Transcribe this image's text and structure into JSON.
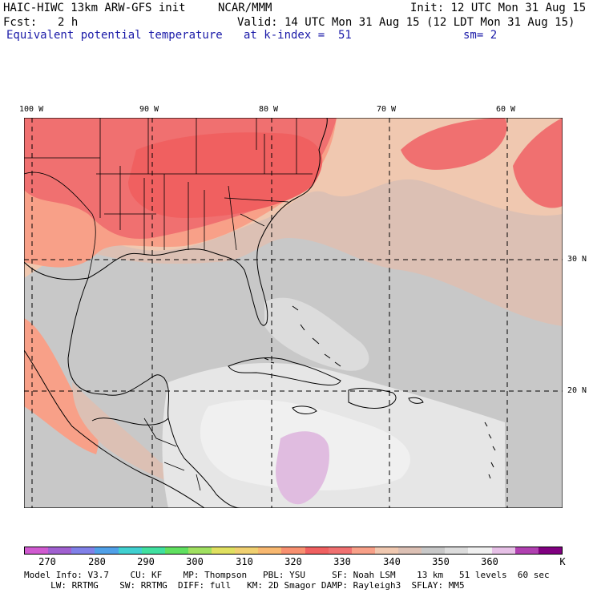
{
  "header": {
    "model_line": "HAIC-HIWC 13km ARW-GFS init",
    "org": "NCAR/MMM",
    "init": "Init: 12 UTC Mon 31 Aug 15",
    "fcst_label": "Fcst:",
    "fcst_value": "2 h",
    "valid": "Valid: 14 UTC Mon 31 Aug 15 (12 LDT Mon 31 Aug 15)",
    "field": "Equivalent potential temperature",
    "level": "at k-index =  51",
    "smooth": "sm= 2"
  },
  "map": {
    "lon_labels": [
      "100 W",
      "90 W",
      "80 W",
      "70 W",
      "60 W"
    ],
    "lat_labels": [
      "30 N",
      "20 N"
    ]
  },
  "colorbar": {
    "colors": [
      "#d05ad0",
      "#a060d0",
      "#8080e8",
      "#50a0e8",
      "#40d0d0",
      "#40e0a0",
      "#60e060",
      "#a0e060",
      "#e0e060",
      "#f0d070",
      "#f8b870",
      "#f89070",
      "#f06060",
      "#f07070",
      "#f8a088",
      "#f0c8b0",
      "#dcc0b4",
      "#c8c8c8",
      "#dcdcdc",
      "#f0f0f0",
      "#e6c0e6",
      "#b040b0",
      "#800080"
    ],
    "labels": [
      "270",
      "280",
      "290",
      "300",
      "310",
      "320",
      "330",
      "340",
      "350",
      "360",
      "K"
    ]
  },
  "footer": {
    "line1": "Model Info: V3.7    CU: KF    MP: Thompson   PBL: YSU     SF: Noah LSM    13 km   51 levels  60 sec",
    "line2": "     LW: RRTMG    SW: RRTMG  DIFF: full   KM: 2D Smagor DAMP: Rayleigh3  SFLAY: MM5"
  }
}
